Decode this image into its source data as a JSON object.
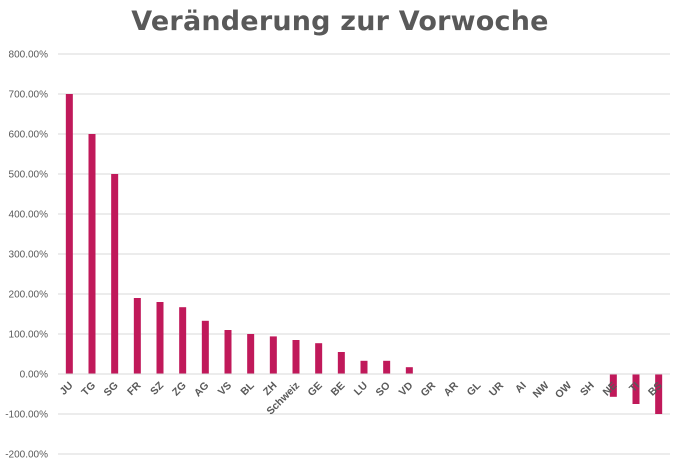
{
  "chart_data": {
    "type": "bar",
    "title": "Veränderung zur Vorwoche",
    "xlabel": "",
    "ylabel": "",
    "ylim": [
      -200,
      800
    ],
    "yticks": [
      -200,
      -100,
      0,
      100,
      200,
      300,
      400,
      500,
      600,
      700,
      800
    ],
    "ytick_labels": [
      "-200.00%",
      "-100.00%",
      "0.00%",
      "100.00%",
      "200.00%",
      "300.00%",
      "400.00%",
      "500.00%",
      "600.00%",
      "700.00%",
      "800.00%"
    ],
    "grid": true,
    "legend": "none",
    "bar_color": "#c0195a",
    "categories": [
      "JU",
      "TG",
      "SG",
      "FR",
      "SZ",
      "ZG",
      "AG",
      "VS",
      "BL",
      "ZH",
      "Schweiz",
      "GE",
      "BE",
      "LU",
      "SO",
      "VD",
      "GR",
      "AR",
      "GL",
      "UR",
      "AI",
      "NW",
      "OW",
      "SH",
      "NE",
      "TI",
      "BS"
    ],
    "values": [
      700,
      600,
      500,
      190,
      180,
      167,
      133,
      110,
      100,
      94,
      85,
      77,
      55,
      33,
      33,
      17,
      0,
      0,
      0,
      0,
      0,
      0,
      0,
      0,
      -57,
      -75,
      -100
    ]
  }
}
